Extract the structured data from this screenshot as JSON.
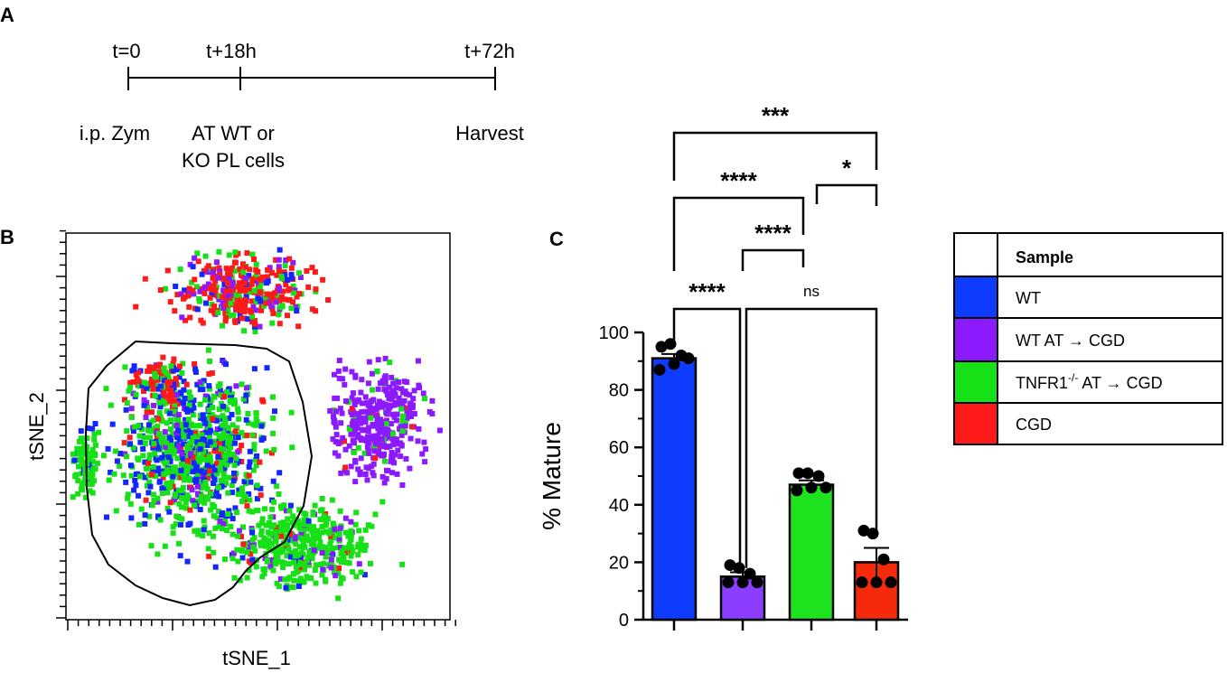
{
  "panels": {
    "a": "A",
    "b": "B",
    "c": "C"
  },
  "timeline": {
    "events": [
      {
        "time": "t=0",
        "desc": [
          "i.p. Zym"
        ]
      },
      {
        "time": "t+18h",
        "desc": [
          "AT WT or",
          "KO PL cells"
        ]
      },
      {
        "time": "t+72h",
        "desc": [
          "Harvest"
        ]
      }
    ]
  },
  "tsne": {
    "xlabel": "tSNE_1",
    "ylabel": "tSNE_2",
    "colors": {
      "WT": "#1326ff",
      "WT AT → CGD": "#8c1aff",
      "TNFR1-/- AT → CGD": "#16e116",
      "CGD": "#ff1a1a"
    }
  },
  "chart_data": {
    "type": "bar",
    "ylabel": "% Mature",
    "ylim": [
      0,
      100
    ],
    "yticks": [
      0,
      20,
      40,
      60,
      80,
      100
    ],
    "categories": [
      "WT",
      "WT AT → CGD",
      "TNFR1-/- AT → CGD",
      "CGD"
    ],
    "values": [
      91,
      15,
      47,
      20
    ],
    "errors": [
      1.5,
      1.5,
      1.5,
      5
    ],
    "colors": [
      "#0d3cff",
      "#8c3dff",
      "#1ee31e",
      "#f52a0a"
    ],
    "points": [
      [
        95,
        96,
        92,
        91,
        89,
        87
      ],
      [
        19,
        18,
        16,
        13,
        13,
        13
      ],
      [
        51,
        51,
        50,
        46,
        46,
        45
      ],
      [
        31,
        30,
        21,
        13,
        13,
        13
      ]
    ],
    "comparisons": [
      {
        "groups": [
          1,
          2
        ],
        "label": "****"
      },
      {
        "groups": [
          2,
          3
        ],
        "label": "****"
      },
      {
        "groups": [
          2,
          4
        ],
        "label": "ns"
      },
      {
        "groups": [
          1,
          3
        ],
        "label": "****"
      },
      {
        "groups": [
          3,
          4
        ],
        "label": "*"
      },
      {
        "groups": [
          1,
          4
        ],
        "label": "***"
      }
    ]
  },
  "legend": {
    "header": "Sample",
    "items": [
      {
        "label": "WT",
        "color": "#0d3cff"
      },
      {
        "label": "WT AT → CGD",
        "color": "#8c1aff"
      },
      {
        "label_main": "TNFR1",
        "label_sup": "-/-",
        "label_rest": " AT → CGD",
        "color": "#16e116"
      },
      {
        "label": "CGD",
        "color": "#ff1a1a"
      }
    ]
  }
}
